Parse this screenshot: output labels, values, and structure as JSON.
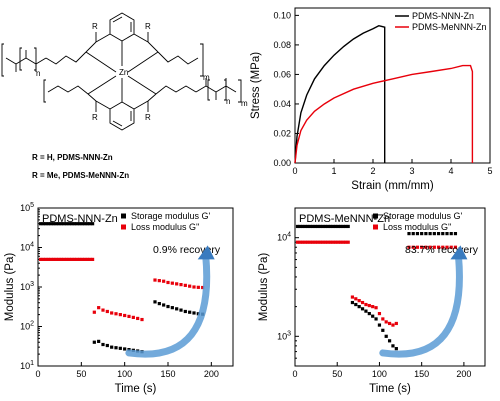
{
  "structure": {
    "labels": [
      {
        "text": "R = H,    PDMS-NNN-Zn"
      },
      {
        "text": "R = Me, PDMS-MeNNN-Zn"
      }
    ],
    "atoms": {
      "Zn": "Zn",
      "R": "R",
      "n": "n",
      "m": "m"
    }
  },
  "chart_data": [
    {
      "id": "stress-strain",
      "type": "line",
      "xlabel": "Strain (mm/mm)",
      "ylabel": "Stress (MPa)",
      "xlim": [
        0,
        5
      ],
      "ylim": [
        0,
        0.105
      ],
      "xticks": [
        0,
        1,
        2,
        3,
        4,
        5
      ],
      "yticks": [
        0.0,
        0.02,
        0.04,
        0.06,
        0.08,
        0.1
      ],
      "ytick_labels": [
        "0.00",
        "0.02",
        "0.04",
        "0.06",
        "0.08",
        "0.10"
      ],
      "legend_position": "top-right",
      "series": [
        {
          "name": "PDMS-NNN-Zn",
          "color": "#000000",
          "x": [
            0,
            0.05,
            0.15,
            0.3,
            0.5,
            0.75,
            1.0,
            1.25,
            1.5,
            1.75,
            2.0,
            2.15,
            2.3,
            2.3
          ],
          "y": [
            0,
            0.018,
            0.034,
            0.046,
            0.057,
            0.066,
            0.073,
            0.079,
            0.084,
            0.088,
            0.091,
            0.093,
            0.092,
            0.0
          ]
        },
        {
          "name": "PDMS-MeNNN-Zn",
          "color": "#e8000b",
          "x": [
            0,
            0.05,
            0.15,
            0.3,
            0.5,
            0.75,
            1.0,
            1.5,
            2.0,
            2.5,
            3.0,
            3.5,
            4.0,
            4.3,
            4.5,
            4.55,
            4.55
          ],
          "y": [
            0,
            0.012,
            0.022,
            0.029,
            0.035,
            0.04,
            0.044,
            0.05,
            0.054,
            0.057,
            0.06,
            0.062,
            0.064,
            0.066,
            0.066,
            0.062,
            0.0
          ]
        }
      ]
    },
    {
      "id": "modulus-nnn",
      "type": "scatter",
      "title": "PDMS-NNN-Zn",
      "xlabel": "Time (s)",
      "ylabel": "Modulus (Pa)",
      "xlim": [
        0,
        225
      ],
      "yscale": "log",
      "ylim": [
        10,
        100000
      ],
      "xticks": [
        0,
        50,
        100,
        150,
        200
      ],
      "yticks": [
        10,
        100,
        1000,
        10000,
        100000
      ],
      "ytick_labels": [
        {
          "base": "10",
          "exp": "1"
        },
        {
          "base": "10",
          "exp": "2"
        },
        {
          "base": "10",
          "exp": "3"
        },
        {
          "base": "10",
          "exp": "4"
        },
        {
          "base": "10",
          "exp": "5"
        }
      ],
      "legend_position": "top-right",
      "annotation": "0.9% recovery",
      "series": [
        {
          "name": "Storage modulus G'",
          "color": "#000000",
          "x": [
            3,
            6,
            9,
            12,
            15,
            18,
            21,
            24,
            27,
            30,
            33,
            36,
            39,
            42,
            45,
            48,
            51,
            54,
            57,
            60,
            63,
            65,
            70,
            75,
            80,
            85,
            90,
            95,
            100,
            105,
            110,
            115,
            120,
            135,
            140,
            145,
            150,
            155,
            160,
            165,
            170,
            175,
            180,
            185,
            190
          ],
          "y": [
            40000,
            40000,
            40000,
            40000,
            40000,
            40000,
            40000,
            40000,
            40000,
            40000,
            40000,
            40000,
            40000,
            40000,
            40000,
            40000,
            40000,
            40000,
            40000,
            40000,
            40000,
            40,
            42,
            35,
            33,
            30,
            29,
            28,
            27,
            26,
            25,
            24,
            23,
            420,
            380,
            350,
            320,
            300,
            280,
            260,
            240,
            230,
            220,
            210,
            205
          ]
        },
        {
          "name": "Loss modulus G''",
          "color": "#e8000b",
          "x": [
            3,
            6,
            9,
            12,
            15,
            18,
            21,
            24,
            27,
            30,
            33,
            36,
            39,
            42,
            45,
            48,
            51,
            54,
            57,
            60,
            63,
            65,
            70,
            75,
            80,
            85,
            90,
            95,
            100,
            105,
            110,
            115,
            120,
            135,
            140,
            145,
            150,
            155,
            160,
            165,
            170,
            175,
            180,
            185,
            190
          ],
          "y": [
            5000,
            5000,
            5000,
            5000,
            5000,
            5000,
            5000,
            5000,
            5000,
            5000,
            5000,
            5000,
            5000,
            5000,
            5000,
            5000,
            5000,
            5000,
            5000,
            5000,
            5000,
            230,
            300,
            260,
            240,
            220,
            210,
            200,
            190,
            180,
            170,
            160,
            150,
            1500,
            1450,
            1400,
            1300,
            1250,
            1200,
            1150,
            1100,
            1050,
            1000,
            980,
            970
          ]
        }
      ]
    },
    {
      "id": "modulus-menn",
      "type": "scatter",
      "title": "PDMS-MeNNN-Zn",
      "xlabel": "Time (s)",
      "ylabel": "Modulus (Pa)",
      "xlim": [
        0,
        225
      ],
      "yscale": "log",
      "ylim": [
        500,
        20000
      ],
      "xticks": [
        0,
        50,
        100,
        150,
        200
      ],
      "yticks": [
        1000,
        10000
      ],
      "ytick_labels": [
        {
          "base": "10",
          "exp": "3"
        },
        {
          "base": "10",
          "exp": "4"
        }
      ],
      "legend_position": "top-right",
      "annotation": "83.7% recovery",
      "series": [
        {
          "name": "Storage modulus G'",
          "color": "#000000",
          "x": [
            3,
            6,
            9,
            12,
            15,
            18,
            21,
            24,
            27,
            30,
            33,
            36,
            39,
            42,
            45,
            48,
            51,
            54,
            57,
            60,
            63,
            68,
            72,
            76,
            80,
            84,
            88,
            92,
            96,
            100,
            104,
            108,
            112,
            116,
            120,
            135,
            140,
            145,
            150,
            155,
            160,
            165,
            170,
            175,
            180,
            185,
            190
          ],
          "y": [
            13000,
            13000,
            13000,
            13000,
            13000,
            13000,
            13000,
            13000,
            13000,
            13000,
            13000,
            13000,
            13000,
            13000,
            13000,
            13000,
            13000,
            13000,
            13000,
            13000,
            13000,
            2200,
            2100,
            2000,
            1900,
            1800,
            1700,
            1600,
            1500,
            1300,
            1150,
            1000,
            900,
            800,
            750,
            11000,
            11000,
            11000,
            11000,
            11000,
            11000,
            11000,
            11000,
            11000,
            11000,
            11000,
            11000
          ]
        },
        {
          "name": "Loss modulus G''",
          "color": "#e8000b",
          "x": [
            3,
            6,
            9,
            12,
            15,
            18,
            21,
            24,
            27,
            30,
            33,
            36,
            39,
            42,
            45,
            48,
            51,
            54,
            57,
            60,
            63,
            68,
            72,
            76,
            80,
            84,
            88,
            92,
            96,
            100,
            104,
            108,
            112,
            116,
            120,
            135,
            140,
            145,
            150,
            155,
            160,
            165,
            170,
            175,
            180,
            185,
            190
          ],
          "y": [
            9000,
            9000,
            9000,
            9000,
            9000,
            9000,
            9000,
            9000,
            9000,
            9000,
            9000,
            9000,
            9000,
            9000,
            9000,
            9000,
            9000,
            9000,
            9000,
            9000,
            9000,
            2500,
            2400,
            2300,
            2200,
            2100,
            2050,
            2000,
            1950,
            1700,
            1500,
            1400,
            1350,
            1300,
            1350,
            8000,
            8000,
            8000,
            8000,
            8000,
            8000,
            8000,
            8000,
            8000,
            8000,
            8000,
            8000
          ]
        }
      ]
    }
  ]
}
